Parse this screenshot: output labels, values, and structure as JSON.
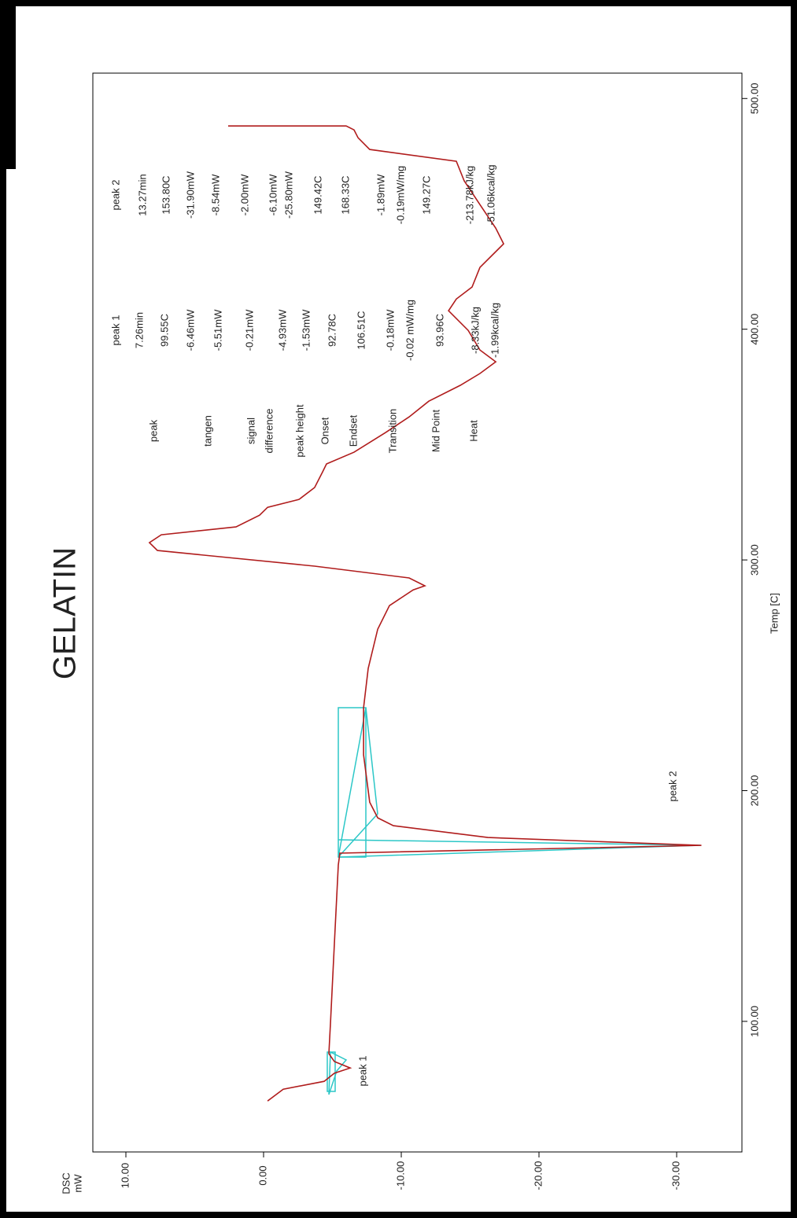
{
  "chart_data": {
    "type": "line",
    "title": "GELATIN",
    "x_label": "Temp [C]",
    "y_label": "DSC",
    "y_unit": "mW",
    "color": "#b01c1c",
    "xlim": [
      43.4,
      511.0
    ],
    "xticks": [
      {
        "value": 100,
        "label": "100.00"
      },
      {
        "value": 200,
        "label": "200.00"
      },
      {
        "value": 300,
        "label": "300.00"
      },
      {
        "value": 400,
        "label": "400.00"
      },
      {
        "value": 500,
        "label": "500.00"
      }
    ],
    "ylim": [
      -34.74,
      12.4
    ],
    "yticks": [
      {
        "value": 10,
        "label": "10.00"
      },
      {
        "value": 0,
        "label": "0.00"
      },
      {
        "value": -10,
        "label": "-10.00"
      },
      {
        "value": -20,
        "label": "-20.00"
      },
      {
        "value": -30,
        "label": "-30.00"
      }
    ],
    "x": [
      65.5,
      70.6,
      74.0,
      77.5,
      79.8,
      82.6,
      86.0,
      99.6,
      133.7,
      167.8,
      172.9,
      176.3,
      179.7,
      184.8,
      188.2,
      195.0,
      215.5,
      235.9,
      253.0,
      270.0,
      280.2,
      287.0,
      288.8,
      292.2,
      297.3,
      302.4,
      304.1,
      307.5,
      310.9,
      314.3,
      319.4,
      322.8,
      326.2,
      331.4,
      338.2,
      341.6,
      346.7,
      355.2,
      362.0,
      368.8,
      375.7,
      380.8,
      385.9,
      391.0,
      399.5,
      408.0,
      413.1,
      418.3,
      426.8,
      437.0,
      443.8,
      454.0,
      464.3,
      472.8,
      477.9,
      483.0,
      486.4,
      488.1,
      488.1
    ],
    "values": [
      -0.29,
      -1.43,
      -4.4,
      -5.14,
      -6.29,
      -5.14,
      -4.74,
      -4.86,
      -5.14,
      -5.43,
      -5.54,
      -31.8,
      -16.29,
      -9.43,
      -8.29,
      -7.71,
      -7.26,
      -7.26,
      -7.6,
      -8.29,
      -9.14,
      -10.86,
      -11.71,
      -10.57,
      -3.71,
      4.86,
      7.71,
      8.29,
      7.43,
      2.0,
      0.29,
      -0.29,
      -2.57,
      -3.71,
      -4.29,
      -4.57,
      -6.57,
      -8.86,
      -10.57,
      -12.0,
      -14.29,
      -15.71,
      -16.86,
      -15.71,
      -14.86,
      -13.43,
      -14.0,
      -15.14,
      -15.71,
      -17.43,
      -16.86,
      -15.71,
      -14.57,
      -14.0,
      -7.71,
      -6.86,
      -6.57,
      -6.0,
      2.57
    ],
    "annotations": [
      "peak 1",
      "peak 2"
    ],
    "peak_table": {
      "row_labels": [
        "peak",
        "tangen",
        "signal",
        "difference",
        "peak height",
        "Onset",
        "Endset",
        "Transition",
        "Mid Point",
        "Heat"
      ],
      "columns": [
        [
          "peak 1",
          "7.26min",
          "99.55C",
          "-6.46mW",
          "-5.51mW",
          "-0.21mW",
          "-4.93mW",
          "-1.53mW",
          "92.78C",
          "106.51C",
          "-0.18mW",
          "-0.02 mW/mg",
          "93.96C",
          "-8.33kJ/kg",
          "-1.99kcal/kg"
        ],
        [
          "peak 2",
          "13.27min",
          "153.80C",
          "-31.90mW",
          "-8.54mW",
          "-2.00mW",
          "-6.10mW",
          "-25.80mW",
          "149.42C",
          "168.33C",
          "-1.89mW",
          "-0.19mW/mg",
          "149.27C",
          "-213.78kJ/kg",
          "-51.06kcal/kg"
        ]
      ]
    }
  }
}
